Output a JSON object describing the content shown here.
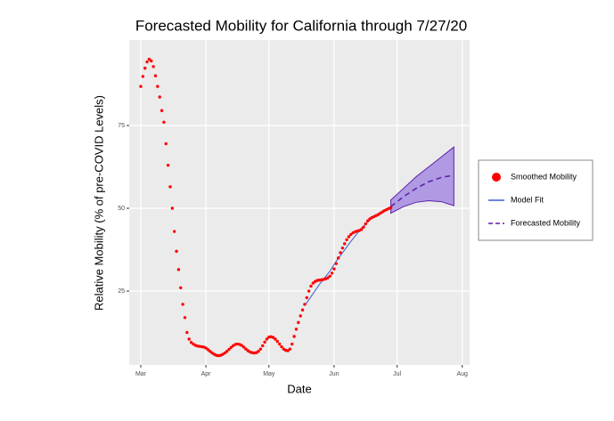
{
  "chart_data": {
    "type": "scatter",
    "title": "Forecasted Mobility for California through 7/27/20",
    "x_label": "Date",
    "y_label": "Relative Mobility (% of pre-COVID Levels)",
    "xlim": [
      -5.5,
      156.5
    ],
    "xticks": [
      {
        "value": 0,
        "label": "Mar"
      },
      {
        "value": 31,
        "label": "Apr"
      },
      {
        "value": 61,
        "label": "May"
      },
      {
        "value": 92,
        "label": "Jun"
      },
      {
        "value": 122,
        "label": "Jul"
      },
      {
        "value": 153,
        "label": "Aug"
      }
    ],
    "ylim": [
      2.7,
      100.8
    ],
    "yticks": [
      25,
      50,
      75
    ],
    "grid": true,
    "series": [
      {
        "name": "Smoothed Mobility",
        "kind": "points",
        "color": "#ff0000",
        "x": [
          0,
          1,
          2,
          3,
          4,
          5,
          6,
          7,
          8,
          9,
          10,
          11,
          12,
          13,
          14,
          15,
          16,
          17,
          18,
          19,
          20,
          21,
          22,
          23,
          24,
          25,
          26,
          27,
          28,
          29,
          30,
          31,
          32,
          33,
          34,
          35,
          36,
          37,
          38,
          39,
          40,
          41,
          42,
          43,
          44,
          45,
          46,
          47,
          48,
          49,
          50,
          51,
          52,
          53,
          54,
          55,
          56,
          57,
          58,
          59,
          60,
          61,
          62,
          63,
          64,
          65,
          66,
          67,
          68,
          69,
          70,
          71,
          72,
          73,
          74,
          75,
          76,
          77,
          78,
          79,
          80,
          81,
          82,
          83,
          84,
          85,
          86,
          87,
          88,
          89,
          90,
          91,
          92,
          93,
          94,
          95,
          96,
          97,
          98,
          99,
          100,
          101,
          102,
          103,
          104,
          105,
          106,
          107,
          108,
          109,
          110,
          111,
          112,
          113,
          114,
          115,
          116,
          117,
          118,
          119
        ],
        "values": [
          86.8,
          89.8,
          92.3,
          94.2,
          95,
          94.5,
          92.8,
          90,
          86.8,
          83.6,
          79.5,
          76,
          69.5,
          63,
          56.5,
          50,
          43,
          37,
          31.5,
          26,
          21,
          17,
          12.5,
          10.5,
          9.5,
          9,
          8.6,
          8.4,
          8.3,
          8.2,
          8.1,
          7.8,
          7.3,
          6.8,
          6.3,
          5.9,
          5.6,
          5.5,
          5.6,
          5.9,
          6.3,
          6.8,
          7.4,
          8,
          8.5,
          8.9,
          9,
          8.9,
          8.6,
          8.1,
          7.5,
          7,
          6.6,
          6.4,
          6.3,
          6.4,
          6.8,
          7.5,
          8.5,
          9.6,
          10.5,
          11.1,
          11.2,
          11,
          10.5,
          9.8,
          9,
          8.2,
          7.5,
          7.1,
          7,
          7.5,
          9,
          11.3,
          13.5,
          15.5,
          17.5,
          19.3,
          21,
          23,
          25,
          26.5,
          27.4,
          27.9,
          28.2,
          28.3,
          28.4,
          28.5,
          28.7,
          29,
          29.5,
          30.4,
          31.7,
          33.3,
          35,
          36.6,
          38,
          39.3,
          40.5,
          41.4,
          42.1,
          42.6,
          42.9,
          43.1,
          43.3,
          43.6,
          44.3,
          45.3,
          46.2,
          46.8,
          47.2,
          47.5,
          47.8,
          48.1,
          48.5,
          48.9,
          49.3,
          49.6,
          49.9,
          50.2
        ]
      },
      {
        "name": "Model Fit",
        "kind": "line",
        "color": "#3b5bd6",
        "x": [
          78.5,
          85,
          90,
          93,
          100,
          105,
          110,
          115,
          119
        ],
        "values": [
          21,
          27,
          31,
          34,
          40,
          44,
          47,
          49,
          50.5
        ]
      },
      {
        "name": "Forecasted Mobility",
        "kind": "forecast",
        "color": "#5b1fa8",
        "band_color": "#9b7fe0",
        "x": [
          119,
          125,
          131,
          137,
          143,
          149
        ],
        "values": [
          50.5,
          53.5,
          56,
          58,
          59.3,
          60
        ],
        "lower": [
          48.5,
          50.5,
          51.8,
          52.3,
          52,
          50.8
        ],
        "upper": [
          52.5,
          56,
          59.5,
          62.5,
          65.5,
          68.5
        ]
      }
    ]
  }
}
